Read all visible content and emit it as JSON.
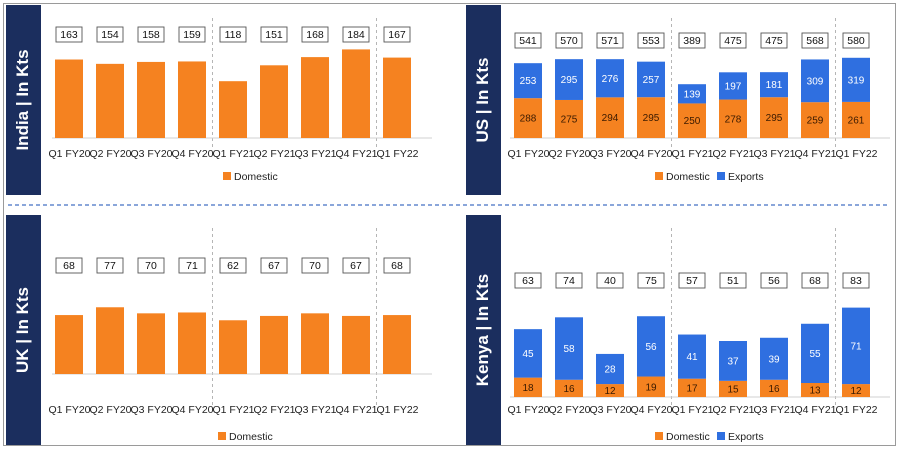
{
  "colors": {
    "domestic": "#f58220",
    "exports": "#2f6fe0",
    "sidebar": "#1b2e5e",
    "divider": "#4472c4",
    "box_border": "#555555"
  },
  "chart_data": [
    {
      "id": "india",
      "type": "bar",
      "title": "India | In Kts",
      "categories": [
        "Q1 FY20",
        "Q2 FY20",
        "Q3 FY20",
        "Q4 FY20",
        "Q1 FY21",
        "Q2 FY21",
        "Q3 FY21",
        "Q4 FY21",
        "Q1 FY22"
      ],
      "series": [
        {
          "name": "Domestic",
          "values": [
            163,
            154,
            158,
            159,
            118,
            151,
            168,
            184,
            167
          ]
        }
      ],
      "totals": [
        163,
        154,
        158,
        159,
        118,
        151,
        168,
        184,
        167
      ],
      "ylim": [
        0,
        270
      ],
      "segment_labels": false,
      "group_separators_after": [
        3,
        7
      ],
      "legend": "bottom"
    },
    {
      "id": "us",
      "type": "bar",
      "title": "US | In Kts",
      "categories": [
        "Q1 FY20",
        "Q2 FY20",
        "Q3 FY20",
        "Q4 FY20",
        "Q1 FY21",
        "Q2 FY21",
        "Q3 FY21",
        "Q4 FY21",
        "Q1 FY22"
      ],
      "series": [
        {
          "name": "Domestic",
          "values": [
            288,
            275,
            294,
            295,
            250,
            278,
            295,
            259,
            261
          ]
        },
        {
          "name": "Exports",
          "values": [
            253,
            295,
            276,
            257,
            139,
            197,
            181,
            309,
            319
          ]
        }
      ],
      "totals": [
        541,
        570,
        571,
        553,
        389,
        475,
        475,
        568,
        580
      ],
      "ylim": [
        0,
        940
      ],
      "segment_labels": true,
      "group_separators_after": [
        3,
        7
      ],
      "legend": "bottom"
    },
    {
      "id": "uk",
      "type": "bar",
      "title": "UK | In Kts",
      "categories": [
        "Q1 FY20",
        "Q2 FY20",
        "Q3 FY20",
        "Q4 FY20",
        "Q1 FY21",
        "Q2 FY21",
        "Q3 FY21",
        "Q4 FY21",
        "Q1 FY22"
      ],
      "series": [
        {
          "name": "Domestic",
          "values": [
            68,
            77,
            70,
            71,
            62,
            67,
            70,
            67,
            68
          ]
        }
      ],
      "totals": [
        68,
        77,
        70,
        71,
        62,
        67,
        70,
        67,
        68
      ],
      "ylim": [
        0,
        150
      ],
      "segment_labels": false,
      "group_separators_after": [
        3,
        7
      ],
      "legend": "bottom"
    },
    {
      "id": "kenya",
      "type": "bar",
      "title": "Kenya | In Kts",
      "categories": [
        "Q1 FY20",
        "Q2 FY20",
        "Q3 FY20",
        "Q4 FY20",
        "Q1 FY21",
        "Q2 FY21",
        "Q3 FY21",
        "Q4 FY21",
        "Q1 FY22"
      ],
      "series": [
        {
          "name": "Domestic",
          "values": [
            18,
            16,
            12,
            19,
            17,
            15,
            16,
            13,
            12
          ]
        },
        {
          "name": "Exports",
          "values": [
            45,
            58,
            28,
            56,
            41,
            37,
            39,
            55,
            71
          ]
        }
      ],
      "totals": [
        63,
        74,
        40,
        75,
        57,
        51,
        56,
        68,
        83
      ],
      "ylim": [
        0,
        130
      ],
      "segment_labels": true,
      "group_separators_after": [
        3,
        7
      ],
      "legend": "bottom"
    }
  ]
}
